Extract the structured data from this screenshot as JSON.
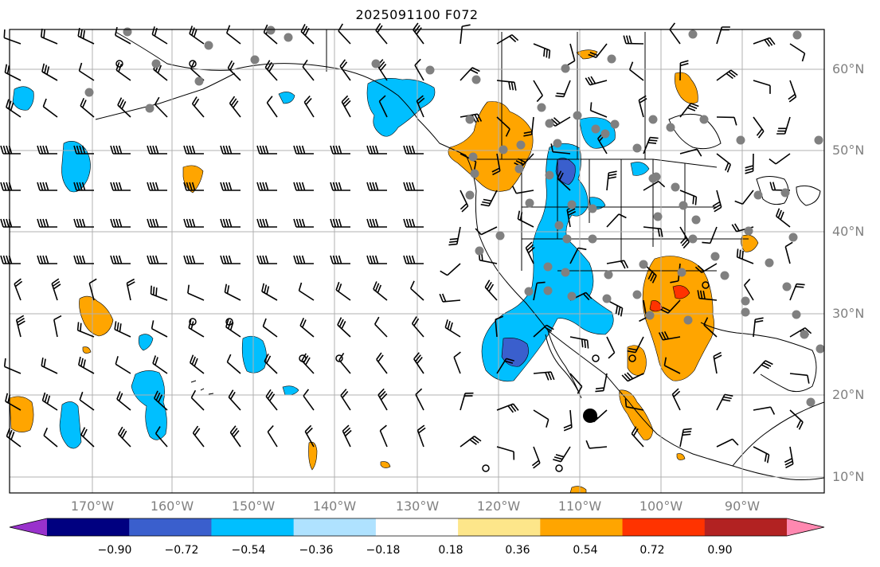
{
  "title": "2025091100 F072",
  "lat_labels": [
    "60°N",
    "50°N",
    "40°N",
    "30°N",
    "20°N",
    "10°N"
  ],
  "lon_labels": [
    "170°W",
    "160°W",
    "150°W",
    "140°W",
    "130°W",
    "120°W",
    "110°W",
    "100°W",
    "90°W"
  ],
  "colorbar": {
    "tick_labels": [
      "−0.90",
      "−0.72",
      "−0.54",
      "−0.36",
      "−0.18",
      "0.18",
      "0.36",
      "0.54",
      "0.72",
      "0.90"
    ],
    "colors": [
      "#9932cc",
      "#000080",
      "#3a5fcd",
      "#00bfff",
      "#afe2ff",
      "#ffffff",
      "#fde68a",
      "#ffa500",
      "#ff3300",
      "#b22222",
      "#ff88b0"
    ]
  }
}
